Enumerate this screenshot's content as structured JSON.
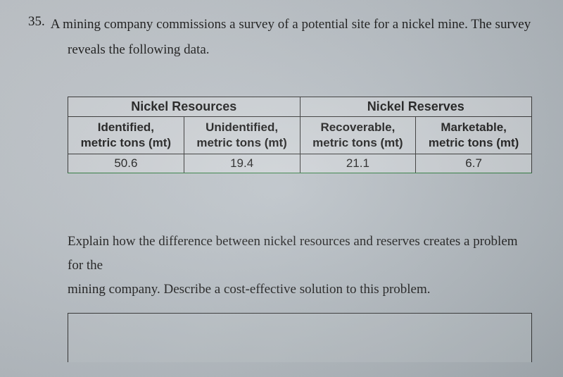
{
  "question": {
    "number": "35.",
    "text_line1": "A mining company commissions a survey of a potential site for a nickel mine. The survey",
    "text_line2": "reveals the following data."
  },
  "table": {
    "group_headers": [
      "Nickel Resources",
      "Nickel Reserves"
    ],
    "columns": [
      {
        "line1": "Identified,",
        "line2": "metric tons (mt)"
      },
      {
        "line1": "Unidentified,",
        "line2": "metric tons (mt)"
      },
      {
        "line1": "Recoverable,",
        "line2": "metric tons (mt)"
      },
      {
        "line1": "Marketable,",
        "line2": "metric tons (mt)"
      }
    ],
    "values": [
      "50.6",
      "19.4",
      "21.1",
      "6.7"
    ]
  },
  "prompt": {
    "line1": "Explain how the difference between nickel resources and reserves creates a problem for the",
    "line2": "mining company. Describe a cost-effective solution to this problem."
  },
  "styles": {
    "font_family": "Times New Roman",
    "table_font_family": "Arial",
    "text_color": "#1a1a1a",
    "border_color": "#333",
    "bottom_accent_color": "#2a7a3a",
    "background_gradient_start": "#c8cdd2",
    "background_gradient_end": "#a8b0b6",
    "question_fontsize": 19,
    "table_fontsize": 17
  }
}
